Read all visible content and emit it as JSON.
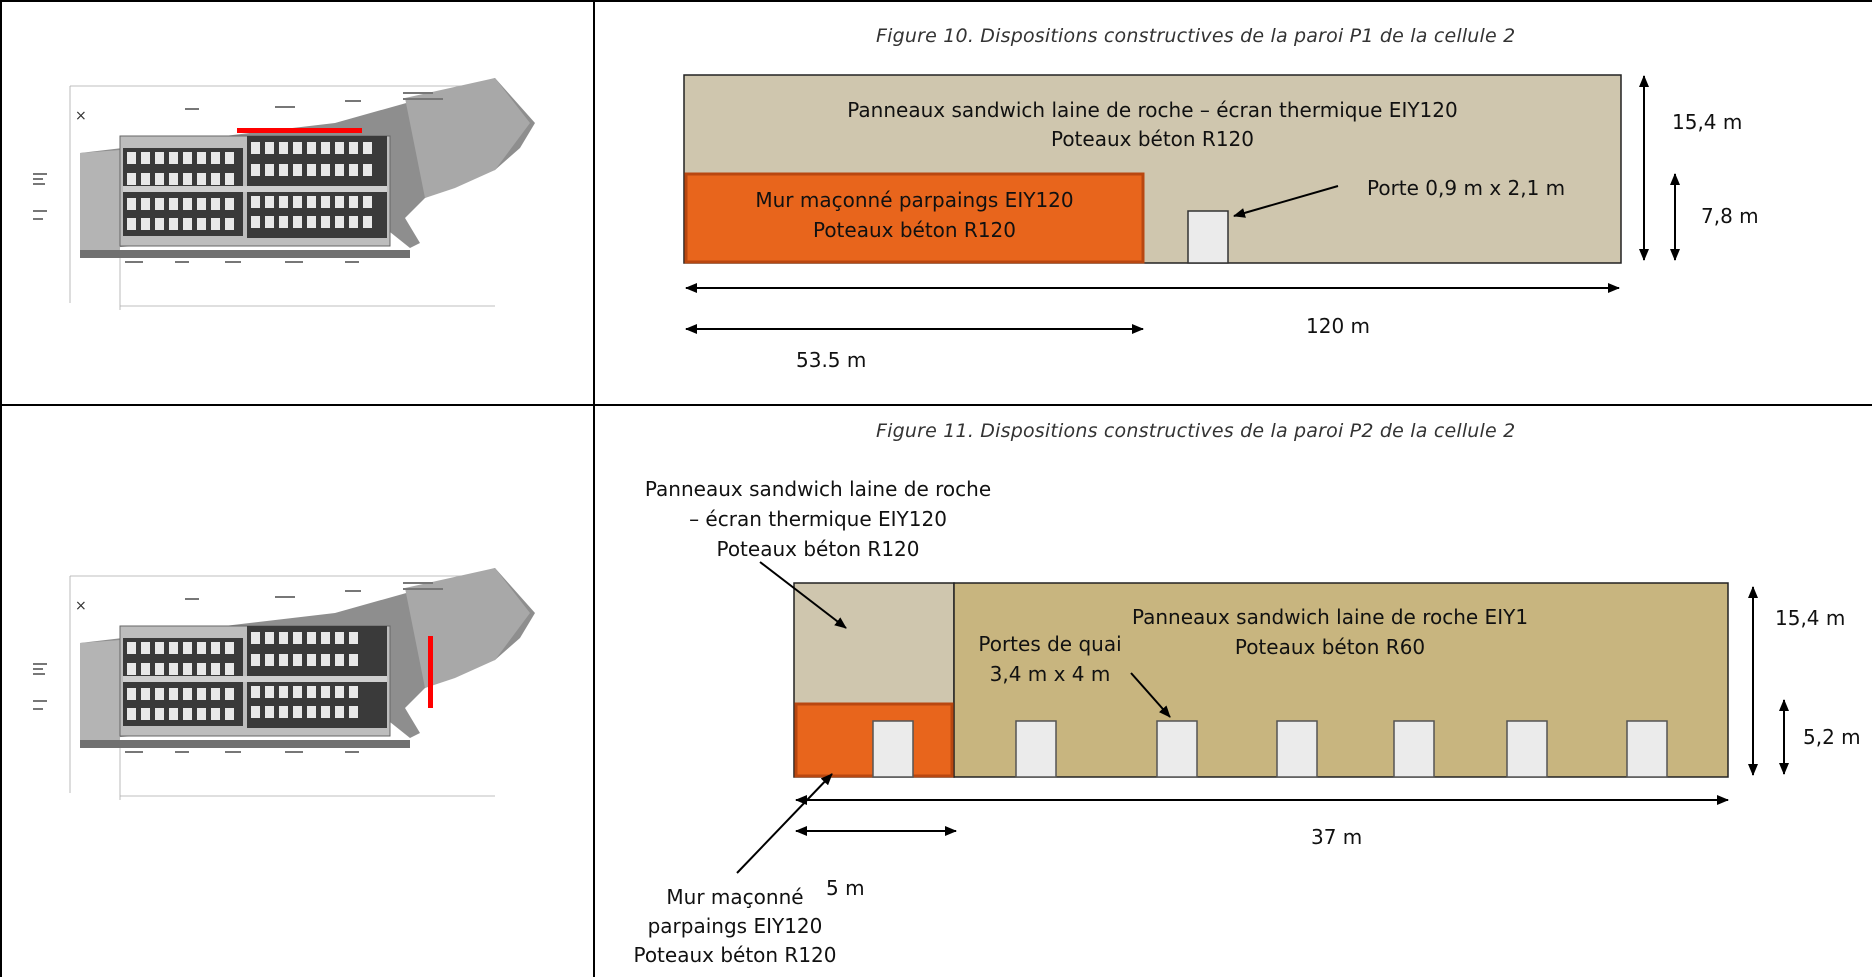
{
  "figure10": {
    "caption": "Figure 10. Dispositions constructives de la paroi P1 de la cellule 2",
    "upper_panel_line1": "Panneaux sandwich laine de roche – écran thermique EIY120",
    "upper_panel_line2": "Poteaux béton R120",
    "lower_panel_line1": "Mur maçonné parpaings EIY120",
    "lower_panel_line2": "Poteaux béton R120",
    "door_label": "Porte 0,9 m x 2,1 m",
    "dim_total_height": "15,4 m",
    "dim_lower_height": "7,8 m",
    "dim_total_length": "120 m",
    "dim_wall_length": "53.5 m"
  },
  "figure11": {
    "caption": "Figure 11. Dispositions constructives de la paroi P2 de la cellule 2",
    "left_panel_line1": "Panneaux sandwich laine de roche",
    "left_panel_line2": "– écran thermique EIY120",
    "left_panel_line3": "Poteaux béton R120",
    "main_panel_line1": "Panneaux sandwich laine de roche EIY1",
    "main_panel_line2": "Poteaux béton R60",
    "dock_doors_line1": "Portes de quai",
    "dock_doors_line2": "3,4 m x 4 m",
    "wall_line1": "Mur maçonné",
    "wall_line2": "parpaings EIY120",
    "wall_line3": "Poteaux béton R120",
    "dim_total_height": "15,4 m",
    "dim_door_height": "5,2 m",
    "dim_total_length": "37 m",
    "dim_wall_length": "5 m"
  },
  "colors": {
    "sandwich_panel_light": "#cfc6ae",
    "sandwich_panel_main": "#c8b57f",
    "masonry_wall": "#e8651c",
    "door_fill": "#ebebeb",
    "site_plan_highlight": "#ff0000"
  }
}
